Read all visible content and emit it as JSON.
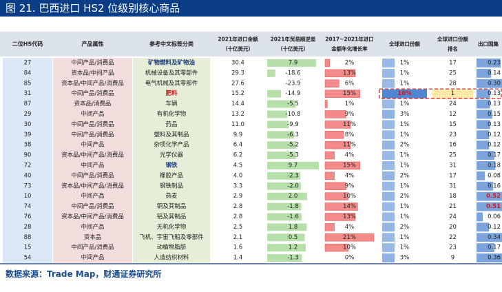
{
  "title": "图 21. 巴西进口 HS2 位级别核心商品",
  "source": "数据来源：Trade Map，财通证券研究所",
  "colors": {
    "title_bg": "#0a3d85",
    "header_bg": "#dde3ea",
    "code_col_bg": "#dbe8f5",
    "attr_col_bg": "#f3dcdc",
    "name_col_bg": "#e6eed8",
    "green_bar": "#a9d99b",
    "red_bar": "#f48b8b",
    "blue_bar": "#4f86d1",
    "dash_red": "#e03030",
    "highlight_bg": "#ffe9a8"
  },
  "headers": {
    "code": "二位HS代码",
    "attr": "产品属性",
    "name": "参考中文标签分类",
    "imports_l1": "2021年进口金额",
    "imports_l2": "（十亿美元）",
    "balance_l1": "2021年贸易顺逆差",
    "balance_l2": "（十亿美元）",
    "cagr_l1": "2017~2021年进口",
    "cagr_l2": "金额年化增长率",
    "share_l1": "全球进口份额",
    "rank_l1": "全球进口份额",
    "rank_l2": "排名",
    "export_l1": "出口国集"
  },
  "chart_data": {
    "type": "table",
    "columns": [
      "二位HS代码",
      "产品属性",
      "参考中文标签分类",
      "2021年进口金额（十亿美元）",
      "2021年贸易顺逆差（十亿美元）",
      "2017~2021年进口金额年化增长率",
      "全球进口份额",
      "全球进口份额排名",
      "出口国集中度"
    ],
    "rows": [
      {
        "code": "27",
        "attr": "中间产品/消费品",
        "name": "矿物燃料及矿物油",
        "name_style": "bold-blue",
        "imports": "30.4",
        "balance": "7.9",
        "balance_num": 7.9,
        "cagr": "2%",
        "cagr_num": 2,
        "share": "1%",
        "share_num": 1,
        "rank": "17",
        "export": "0.23",
        "export_num": 0.23,
        "export_style": ""
      },
      {
        "code": "84",
        "attr": "资本品/中间产品",
        "name": "机械设备及其零部件",
        "name_style": "",
        "imports": "29.3",
        "balance": "-18.6",
        "balance_num": -18.6,
        "cagr": "13%",
        "cagr_num": 13,
        "share": "1%",
        "share_num": 1,
        "rank": "25",
        "export": "0.14",
        "export_num": 0.14,
        "export_style": ""
      },
      {
        "code": "85",
        "attr": "资本品/中间产品/消费品",
        "name": "电气机械及其零部件",
        "name_style": "",
        "imports": "27.6",
        "balance": "-23.9",
        "balance_num": -23.9,
        "cagr": "6%",
        "cagr_num": 6,
        "share": "1%",
        "share_num": 1,
        "rank": "28",
        "export": "0.30",
        "export_num": 0.3,
        "export_style": ""
      },
      {
        "code": "31",
        "attr": "中间产品/消费品",
        "name": "肥料",
        "name_style": "bold-red",
        "imports": "15.2",
        "balance": "-14.9",
        "balance_num": -14.9,
        "cagr": "15%",
        "cagr_num": 15,
        "share": "16%",
        "share_num": 16,
        "rank": "1",
        "export": "0.13",
        "export_num": 0.13,
        "export_style": "",
        "highlight": true
      },
      {
        "code": "87",
        "attr": "资本品/消费品",
        "name": "车辆",
        "name_style": "",
        "imports": "14.4",
        "balance": "-5.5",
        "balance_num": -5.5,
        "cagr": "1%",
        "cagr_num": 1,
        "share": "1%",
        "share_num": 1,
        "rank": "24",
        "export": "0.13",
        "export_num": 0.13,
        "export_style": ""
      },
      {
        "code": "29",
        "attr": "中间产品",
        "name": "有机化学物",
        "name_style": "",
        "imports": "13.2",
        "balance": "-10.8",
        "balance_num": -10.8,
        "cagr": "9%",
        "cagr_num": 9,
        "share": "3%",
        "share_num": 3,
        "rank": "12",
        "export": "0.15",
        "export_num": 0.15,
        "export_style": ""
      },
      {
        "code": "30",
        "attr": "中间产品/消费品",
        "name": "药品",
        "name_style": "",
        "imports": "11.0",
        "balance": "-9.9",
        "balance_num": -9.9,
        "cagr": "11%",
        "cagr_num": 11,
        "share": "1%",
        "share_num": 1,
        "rank": "15",
        "export": "0.13",
        "export_num": 0.13,
        "export_style": ""
      },
      {
        "code": "39",
        "attr": "中间产品/消费品",
        "name": "塑料及其制品",
        "name_style": "",
        "imports": "9.9",
        "balance": "-6.3",
        "balance_num": -6.3,
        "cagr": "8%",
        "cagr_num": 8,
        "share": "1%",
        "share_num": 1,
        "rank": "23",
        "export": "0.12",
        "export_num": 0.12,
        "export_style": ""
      },
      {
        "code": "38",
        "attr": "中间产品",
        "name": "杂项化学产品",
        "name_style": "",
        "imports": "6.4",
        "balance": "-5.2",
        "balance_num": -5.2,
        "cagr": "11%",
        "cagr_num": 11,
        "share": "2%",
        "share_num": 2,
        "rank": "16",
        "export": "0.12",
        "export_num": 0.12,
        "export_style": ""
      },
      {
        "code": "90",
        "attr": "资本品/中间产品/消费品",
        "name": "光学仪器",
        "name_style": "",
        "imports": "6.2",
        "balance": "-5.3",
        "balance_num": -5.3,
        "cagr": "4%",
        "cagr_num": 4,
        "share": "1%",
        "share_num": 1,
        "rank": "25",
        "export": "0.17",
        "export_num": 0.17,
        "export_style": ""
      },
      {
        "code": "72",
        "attr": "中间产品",
        "name": "钢铁",
        "name_style": "bold-blue",
        "imports": "4.5",
        "balance": "9.7",
        "balance_num": 9.7,
        "cagr": "15%",
        "cagr_num": 15,
        "share": "1%",
        "share_num": 1,
        "rank": "31",
        "export": "0.18",
        "export_num": 0.18,
        "export_style": ""
      },
      {
        "code": "40",
        "attr": "中间产品/消费品",
        "name": "橡胶产品",
        "name_style": "",
        "imports": "4.0",
        "balance": "-2.3",
        "balance_num": -2.3,
        "cagr": "4%",
        "cagr_num": 4,
        "share": "2%",
        "share_num": 2,
        "rank": "17",
        "export": "0.08",
        "export_num": 0.08,
        "export_style": ""
      },
      {
        "code": "73",
        "attr": "资本品/中间产品/消费品",
        "name": "钢铁制品",
        "name_style": "",
        "imports": "3.3",
        "balance": "-2.0",
        "balance_num": -2.0,
        "cagr": "9%",
        "cagr_num": 9,
        "share": "1%",
        "share_num": 1,
        "rank": "31",
        "export": "0.16",
        "export_num": 0.16,
        "export_style": ""
      },
      {
        "code": "10",
        "attr": "中间产品",
        "name": "燕麦",
        "name_style": "",
        "imports": "2.9",
        "balance": "2.0",
        "balance_num": 2.0,
        "cagr": "10%",
        "cagr_num": 10,
        "share": "2%",
        "share_num": 2,
        "rank": "18",
        "export": "0.52",
        "export_num": 0.52,
        "export_style": "bold-red"
      },
      {
        "code": "74",
        "attr": "中间产品/消费品",
        "name": "铜及其制品",
        "name_style": "",
        "imports": "2.8",
        "balance": "-1.8",
        "balance_num": -1.8,
        "cagr": "14%",
        "cagr_num": 14,
        "share": "1%",
        "share_num": 1,
        "rank": "21",
        "export": "0.51",
        "export_num": 0.51,
        "export_style": "bold-red"
      },
      {
        "code": "76",
        "attr": "资本品/中间产品/消费品",
        "name": "铝及其制品",
        "name_style": "",
        "imports": "2.8",
        "balance": "-1.6",
        "balance_num": -1.6,
        "cagr": "13%",
        "cagr_num": 13,
        "share": "1%",
        "share_num": 1,
        "rank": "24",
        "export": "0.06",
        "export_num": 0.06,
        "export_style": ""
      },
      {
        "code": "28",
        "attr": "中间产品",
        "name": "无机化学物",
        "name_style": "",
        "imports": "2.5",
        "balance": "1.8",
        "balance_num": 1.8,
        "cagr": "4%",
        "cagr_num": 4,
        "share": "2%",
        "share_num": 2,
        "rank": "20",
        "export": "0.12",
        "export_num": 0.12,
        "export_style": ""
      },
      {
        "code": "88",
        "attr": "资本品",
        "name": "飞机、宇宙飞船及零部件",
        "name_style": "",
        "imports": "2.1",
        "balance": "0.5",
        "balance_num": 0.5,
        "cagr": "21%",
        "cagr_num": 21,
        "share": "1%",
        "share_num": 1,
        "rank": "22",
        "export": "0.34",
        "export_num": 0.34,
        "export_style": ""
      },
      {
        "code": "15",
        "attr": "中间产品/消费品",
        "name": "动植物脂肪",
        "name_style": "",
        "imports": "1.6",
        "balance": "1.2",
        "balance_num": 1.2,
        "cagr": "10%",
        "cagr_num": 10,
        "share": "1%",
        "share_num": 1,
        "rank": "23",
        "export": "0.17",
        "export_num": 0.17,
        "export_style": ""
      },
      {
        "code": "54",
        "attr": "中间产品",
        "name": "人造纺织材料",
        "name_style": "",
        "imports": "1.4",
        "balance": "-1.3",
        "balance_num": -1.3,
        "cagr": "0%",
        "cagr_num": 0,
        "share": "3%",
        "share_num": 3,
        "rank": "9",
        "export": "0.36",
        "export_num": 0.36,
        "export_style": ""
      }
    ]
  }
}
